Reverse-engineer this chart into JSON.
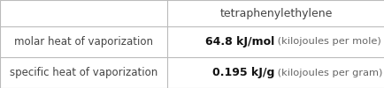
{
  "header_col": "tetraphenylethylene",
  "rows": [
    {
      "label": "molar heat of vaporization",
      "value_bold": "64.8 kJ/mol",
      "value_light": " (kilojoules per mole)"
    },
    {
      "label": "specific heat of vaporization",
      "value_bold": "0.195 kJ/g",
      "value_light": " (kilojoules per gram)"
    }
  ],
  "col_split": 0.435,
  "background_color": "#ffffff",
  "border_color": "#bbbbbb",
  "text_color_label": "#444444",
  "text_color_bold": "#111111",
  "text_color_light": "#666666",
  "header_fontsize": 9.0,
  "label_fontsize": 8.5,
  "value_bold_fontsize": 9.0,
  "value_light_fontsize": 8.2
}
